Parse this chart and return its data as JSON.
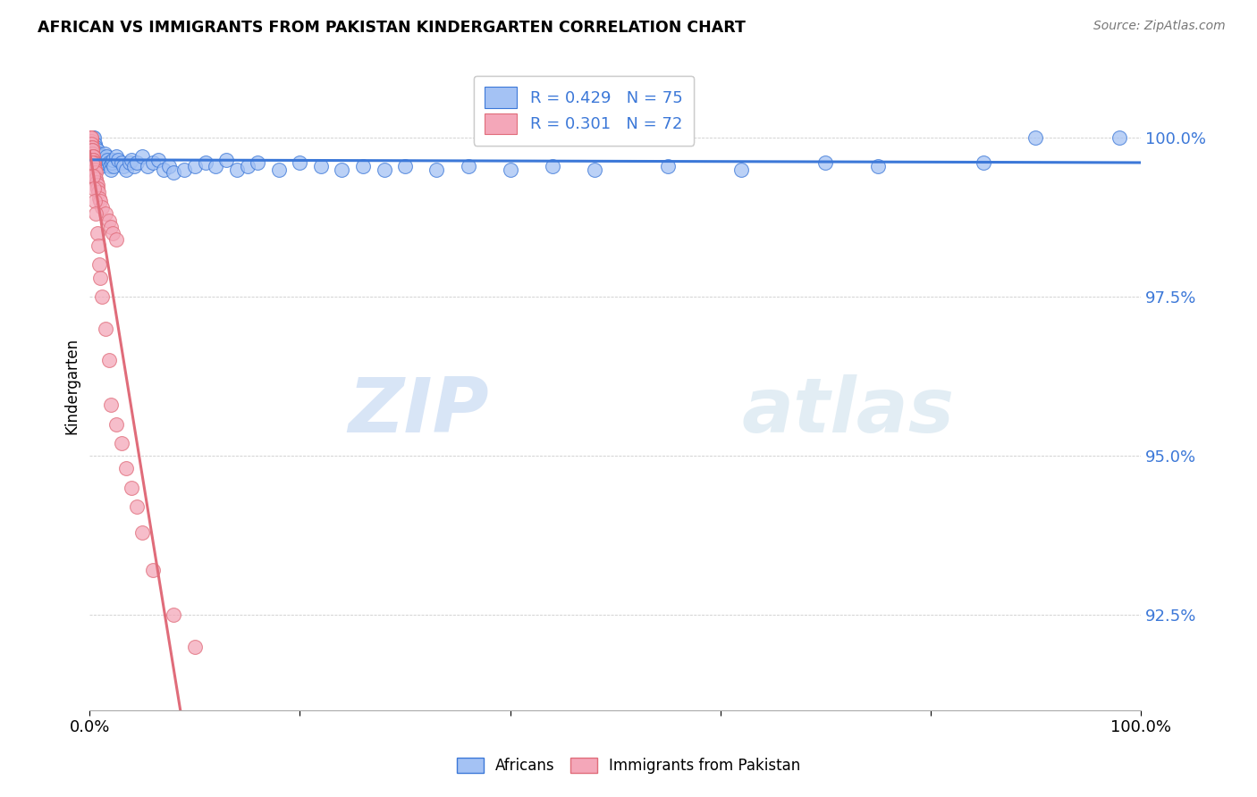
{
  "title": "AFRICAN VS IMMIGRANTS FROM PAKISTAN KINDERGARTEN CORRELATION CHART",
  "source": "Source: ZipAtlas.com",
  "ylabel": "Kindergarten",
  "ytick_labels": [
    "92.5%",
    "95.0%",
    "97.5%",
    "100.0%"
  ],
  "ytick_values": [
    92.5,
    95.0,
    97.5,
    100.0
  ],
  "xlim": [
    0.0,
    100.0
  ],
  "ylim": [
    91.0,
    101.2
  ],
  "legend_blue_label": "R = 0.429   N = 75",
  "legend_pink_label": "R = 0.301   N = 72",
  "legend_africans": "Africans",
  "legend_pakistan": "Immigrants from Pakistan",
  "blue_color": "#a4c2f4",
  "pink_color": "#f4a7b9",
  "trend_blue": "#3c78d8",
  "trend_pink": "#e06c7a",
  "watermark_zip": "ZIP",
  "watermark_atlas": "atlas",
  "blue_scatter_x": [
    0.1,
    0.2,
    0.3,
    0.3,
    0.4,
    0.4,
    0.5,
    0.5,
    0.6,
    0.6,
    0.7,
    0.7,
    0.8,
    0.8,
    0.9,
    0.9,
    1.0,
    1.0,
    1.1,
    1.1,
    1.2,
    1.3,
    1.4,
    1.5,
    1.6,
    1.7,
    1.8,
    1.9,
    2.0,
    2.1,
    2.2,
    2.3,
    2.5,
    2.7,
    3.0,
    3.2,
    3.5,
    3.8,
    4.0,
    4.2,
    4.5,
    5.0,
    5.5,
    6.0,
    6.5,
    7.0,
    7.5,
    8.0,
    9.0,
    10.0,
    11.0,
    12.0,
    13.0,
    14.0,
    15.0,
    16.0,
    18.0,
    20.0,
    22.0,
    24.0,
    26.0,
    28.0,
    30.0,
    33.0,
    36.0,
    40.0,
    44.0,
    48.0,
    55.0,
    62.0,
    70.0,
    75.0,
    85.0,
    90.0,
    98.0
  ],
  "blue_scatter_y": [
    100.0,
    99.9,
    99.85,
    100.0,
    99.9,
    100.0,
    99.85,
    99.9,
    99.8,
    99.85,
    99.75,
    99.8,
    99.7,
    99.75,
    99.65,
    99.7,
    99.6,
    99.65,
    99.55,
    99.6,
    99.7,
    99.65,
    99.75,
    99.6,
    99.7,
    99.65,
    99.6,
    99.55,
    99.5,
    99.6,
    99.65,
    99.55,
    99.7,
    99.65,
    99.6,
    99.55,
    99.5,
    99.6,
    99.65,
    99.55,
    99.6,
    99.7,
    99.55,
    99.6,
    99.65,
    99.5,
    99.55,
    99.45,
    99.5,
    99.55,
    99.6,
    99.55,
    99.65,
    99.5,
    99.55,
    99.6,
    99.5,
    99.6,
    99.55,
    99.5,
    99.55,
    99.5,
    99.55,
    99.5,
    99.55,
    99.5,
    99.55,
    99.5,
    99.55,
    99.5,
    99.6,
    99.55,
    99.6,
    100.0,
    100.0
  ],
  "pink_scatter_x": [
    0.05,
    0.07,
    0.08,
    0.09,
    0.1,
    0.1,
    0.12,
    0.13,
    0.14,
    0.15,
    0.15,
    0.17,
    0.18,
    0.19,
    0.2,
    0.2,
    0.22,
    0.23,
    0.24,
    0.25,
    0.25,
    0.27,
    0.28,
    0.3,
    0.3,
    0.32,
    0.35,
    0.35,
    0.37,
    0.4,
    0.4,
    0.42,
    0.45,
    0.5,
    0.5,
    0.52,
    0.55,
    0.6,
    0.65,
    0.7,
    0.75,
    0.8,
    0.9,
    1.0,
    1.2,
    1.5,
    1.8,
    2.0,
    2.2,
    2.5,
    0.2,
    0.3,
    0.4,
    0.5,
    0.6,
    0.7,
    0.8,
    0.9,
    1.0,
    1.2,
    1.5,
    1.8,
    2.0,
    2.5,
    3.0,
    3.5,
    4.0,
    4.5,
    5.0,
    6.0,
    8.0,
    10.0
  ],
  "pink_scatter_y": [
    100.0,
    100.0,
    100.0,
    99.95,
    99.95,
    100.0,
    99.95,
    99.9,
    99.9,
    99.9,
    100.0,
    99.9,
    99.85,
    99.85,
    99.8,
    99.85,
    99.8,
    99.75,
    99.75,
    99.75,
    99.8,
    99.7,
    99.7,
    99.65,
    99.7,
    99.65,
    99.6,
    99.65,
    99.6,
    99.55,
    99.6,
    99.55,
    99.5,
    99.45,
    99.5,
    99.4,
    99.45,
    99.35,
    99.3,
    99.25,
    99.2,
    99.15,
    99.05,
    99.0,
    98.9,
    98.8,
    98.7,
    98.6,
    98.5,
    98.4,
    99.6,
    99.4,
    99.2,
    99.0,
    98.8,
    98.5,
    98.3,
    98.0,
    97.8,
    97.5,
    97.0,
    96.5,
    95.8,
    95.5,
    95.2,
    94.8,
    94.5,
    94.2,
    93.8,
    93.2,
    92.5,
    92.0
  ]
}
